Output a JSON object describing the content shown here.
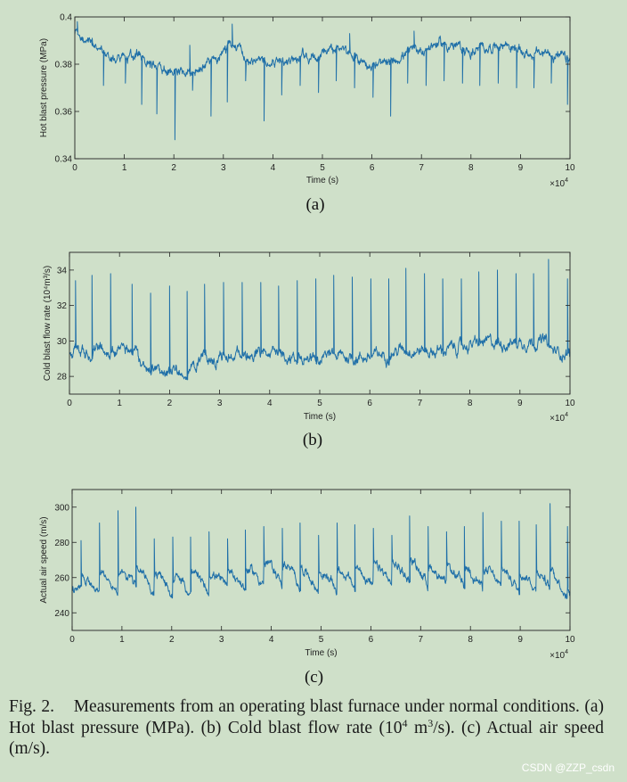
{
  "chart_data": [
    {
      "type": "line",
      "ylabel": "Hot blast pressure (MPa)",
      "xlabel": "Time (s)",
      "panel_label": "(a)",
      "xlim": [
        0,
        10
      ],
      "ylim": [
        0.34,
        0.4
      ],
      "x_ticks": [
        "0",
        "1",
        "2",
        "3",
        "4",
        "5",
        "6",
        "7",
        "8",
        "9",
        "10"
      ],
      "y_ticks": [
        "0.34",
        "0.36",
        "0.38",
        "0.4"
      ],
      "x_multiplier": {
        "base": "×10",
        "exp": "4"
      },
      "series": [
        {
          "name": "hot blast pressure",
          "color": "#1f6fa8",
          "base": [
            [
              0,
              0.392
            ],
            [
              0.3,
              0.389
            ],
            [
              0.6,
              0.383
            ],
            [
              1.0,
              0.382
            ],
            [
              1.3,
              0.384
            ],
            [
              1.6,
              0.379
            ],
            [
              2.0,
              0.377
            ],
            [
              2.3,
              0.376
            ],
            [
              2.6,
              0.38
            ],
            [
              3.0,
              0.384
            ],
            [
              3.2,
              0.39
            ],
            [
              3.5,
              0.383
            ],
            [
              3.8,
              0.381
            ],
            [
              4.2,
              0.382
            ],
            [
              4.6,
              0.383
            ],
            [
              5.0,
              0.385
            ],
            [
              5.3,
              0.386
            ],
            [
              5.6,
              0.383
            ],
            [
              6.0,
              0.38
            ],
            [
              6.3,
              0.379
            ],
            [
              6.6,
              0.384
            ],
            [
              7.0,
              0.386
            ],
            [
              7.3,
              0.389
            ],
            [
              7.6,
              0.388
            ],
            [
              8.0,
              0.385
            ],
            [
              8.3,
              0.387
            ],
            [
              8.7,
              0.389
            ],
            [
              9.0,
              0.385
            ],
            [
              9.3,
              0.384
            ],
            [
              9.6,
              0.385
            ],
            [
              10,
              0.381
            ]
          ],
          "noise": 0.0018,
          "spikes": [
            [
              0.58,
              0.371
            ],
            [
              1.02,
              0.372
            ],
            [
              1.35,
              0.363
            ],
            [
              1.66,
              0.359
            ],
            [
              2.02,
              0.348
            ],
            [
              2.38,
              0.369
            ],
            [
              2.75,
              0.358
            ],
            [
              3.08,
              0.364
            ],
            [
              3.45,
              0.373
            ],
            [
              3.82,
              0.356
            ],
            [
              4.18,
              0.367
            ],
            [
              4.55,
              0.371
            ],
            [
              4.92,
              0.368
            ],
            [
              5.28,
              0.373
            ],
            [
              5.65,
              0.37
            ],
            [
              6.02,
              0.366
            ],
            [
              6.38,
              0.358
            ],
            [
              6.72,
              0.372
            ],
            [
              7.09,
              0.371
            ],
            [
              7.46,
              0.373
            ],
            [
              7.83,
              0.372
            ],
            [
              8.18,
              0.371
            ],
            [
              8.55,
              0.372
            ],
            [
              8.92,
              0.37
            ],
            [
              9.27,
              0.37
            ],
            [
              9.62,
              0.372
            ],
            [
              9.95,
              0.363
            ]
          ],
          "up_spikes": [
            [
              0.05,
              0.398
            ],
            [
              3.18,
              0.397
            ],
            [
              5.55,
              0.393
            ],
            [
              6.85,
              0.394
            ],
            [
              2.32,
              0.388
            ],
            [
              0.35,
              0.391
            ]
          ]
        }
      ]
    },
    {
      "type": "line",
      "ylabel": "Cold blast flow rate (10⁴m³/s)",
      "xlabel": "Time (s)",
      "panel_label": "(b)",
      "xlim": [
        0,
        10
      ],
      "ylim": [
        27,
        35
      ],
      "x_ticks": [
        "0",
        "1",
        "2",
        "3",
        "4",
        "5",
        "6",
        "7",
        "8",
        "9",
        "10"
      ],
      "y_ticks": [
        "28",
        "30",
        "32",
        "34"
      ],
      "x_multiplier": {
        "base": "×10",
        "exp": "4"
      },
      "series": [
        {
          "name": "cold blast flow rate",
          "color": "#1f6fa8",
          "base": [
            [
              0,
              29.4
            ],
            [
              0.5,
              29.4
            ],
            [
              1.0,
              29.5
            ],
            [
              1.3,
              29.3
            ],
            [
              1.5,
              28.7
            ],
            [
              1.8,
              28.2
            ],
            [
              2.2,
              28.1
            ],
            [
              2.4,
              28.3
            ],
            [
              2.6,
              29.1
            ],
            [
              3.0,
              29.0
            ],
            [
              3.3,
              29.2
            ],
            [
              3.8,
              29.3
            ],
            [
              4.2,
              29.1
            ],
            [
              4.6,
              29.0
            ],
            [
              5.0,
              29.2
            ],
            [
              5.5,
              29.1
            ],
            [
              6.0,
              29.1
            ],
            [
              6.4,
              29.3
            ],
            [
              6.7,
              29.6
            ],
            [
              7.0,
              29.5
            ],
            [
              7.3,
              29.4
            ],
            [
              7.7,
              29.6
            ],
            [
              8.0,
              29.8
            ],
            [
              8.4,
              29.9
            ],
            [
              8.8,
              29.9
            ],
            [
              9.2,
              30.0
            ],
            [
              9.5,
              30.0
            ],
            [
              9.65,
              29.4
            ],
            [
              10,
              29.3
            ]
          ],
          "noise": 0.28,
          "up_spikes": [
            [
              0.12,
              33.4
            ],
            [
              0.45,
              33.7
            ],
            [
              0.82,
              33.8
            ],
            [
              1.25,
              33.2
            ],
            [
              1.62,
              32.7
            ],
            [
              2.0,
              33.1
            ],
            [
              2.35,
              32.8
            ],
            [
              2.7,
              33.2
            ],
            [
              3.08,
              33.3
            ],
            [
              3.45,
              33.3
            ],
            [
              3.82,
              33.3
            ],
            [
              4.18,
              33.1
            ],
            [
              4.55,
              33.4
            ],
            [
              4.92,
              33.5
            ],
            [
              5.28,
              33.7
            ],
            [
              5.65,
              33.6
            ],
            [
              6.02,
              33.5
            ],
            [
              6.38,
              33.5
            ],
            [
              6.72,
              34.1
            ],
            [
              7.09,
              33.8
            ],
            [
              7.46,
              33.5
            ],
            [
              7.83,
              33.5
            ],
            [
              8.18,
              33.9
            ],
            [
              8.55,
              34.0
            ],
            [
              8.92,
              33.8
            ],
            [
              9.27,
              33.8
            ],
            [
              9.57,
              34.6
            ],
            [
              9.95,
              33.5
            ]
          ]
        }
      ]
    },
    {
      "type": "line",
      "ylabel": "Actual air speed (m/s)",
      "xlabel": "Time (s)",
      "panel_label": "(c)",
      "xlim": [
        0,
        10
      ],
      "ylim": [
        230,
        310
      ],
      "x_ticks": [
        "0",
        "1",
        "2",
        "3",
        "4",
        "5",
        "6",
        "7",
        "8",
        "9",
        "10"
      ],
      "y_ticks": [
        "240",
        "260",
        "280",
        "300"
      ],
      "x_multiplier": {
        "base": "×10",
        "exp": "4"
      },
      "series": [
        {
          "name": "actual air speed",
          "color": "#1f6fa8",
          "base": [
            [
              0,
              254
            ],
            [
              0.5,
              255
            ],
            [
              1.0,
              258
            ],
            [
              1.3,
              261
            ],
            [
              1.6,
              256
            ],
            [
              2.0,
              255
            ],
            [
              2.5,
              256
            ],
            [
              3.0,
              258
            ],
            [
              3.5,
              259
            ],
            [
              4.0,
              263
            ],
            [
              4.5,
              261
            ],
            [
              5.0,
              257
            ],
            [
              5.5,
              259
            ],
            [
              6.0,
              260
            ],
            [
              6.5,
              262
            ],
            [
              6.8,
              264
            ],
            [
              7.2,
              261
            ],
            [
              7.6,
              259
            ],
            [
              8.0,
              260
            ],
            [
              8.5,
              259
            ],
            [
              9.0,
              258
            ],
            [
              9.5,
              259
            ],
            [
              10,
              254
            ]
          ],
          "noise": 2.2,
          "cycle_dip": 12,
          "up_spikes": [
            [
              0.18,
              281
            ],
            [
              0.55,
              291
            ],
            [
              0.92,
              298
            ],
            [
              1.28,
              300
            ],
            [
              1.65,
              282
            ],
            [
              2.02,
              283
            ],
            [
              2.38,
              283
            ],
            [
              2.75,
              286
            ],
            [
              3.12,
              282
            ],
            [
              3.48,
              287
            ],
            [
              3.85,
              289
            ],
            [
              4.22,
              288
            ],
            [
              4.58,
              291
            ],
            [
              4.95,
              284
            ],
            [
              5.32,
              291
            ],
            [
              5.68,
              290
            ],
            [
              6.05,
              288
            ],
            [
              6.42,
              284
            ],
            [
              6.78,
              295
            ],
            [
              7.15,
              289
            ],
            [
              7.52,
              286
            ],
            [
              7.88,
              289
            ],
            [
              8.25,
              297
            ],
            [
              8.62,
              292
            ],
            [
              8.98,
              292
            ],
            [
              9.32,
              290
            ],
            [
              9.6,
              302
            ],
            [
              9.95,
              289
            ]
          ]
        }
      ]
    }
  ],
  "caption": {
    "fig_label": "Fig. 2.",
    "text_1": "Measurements from an operating blast furnace under normal conditions. (a) Hot blast pressure (MPa). (b) Cold blast flow rate (10",
    "sup_1": "4",
    "text_2": " m",
    "sup_2": "3",
    "text_3": "/s). (c) Actual air speed (m/s)."
  },
  "watermark": "CSDN @ZZP_csdn",
  "colors": {
    "background": "#cfe0c9",
    "line": "#1f6fa8",
    "axis": "#222222"
  }
}
